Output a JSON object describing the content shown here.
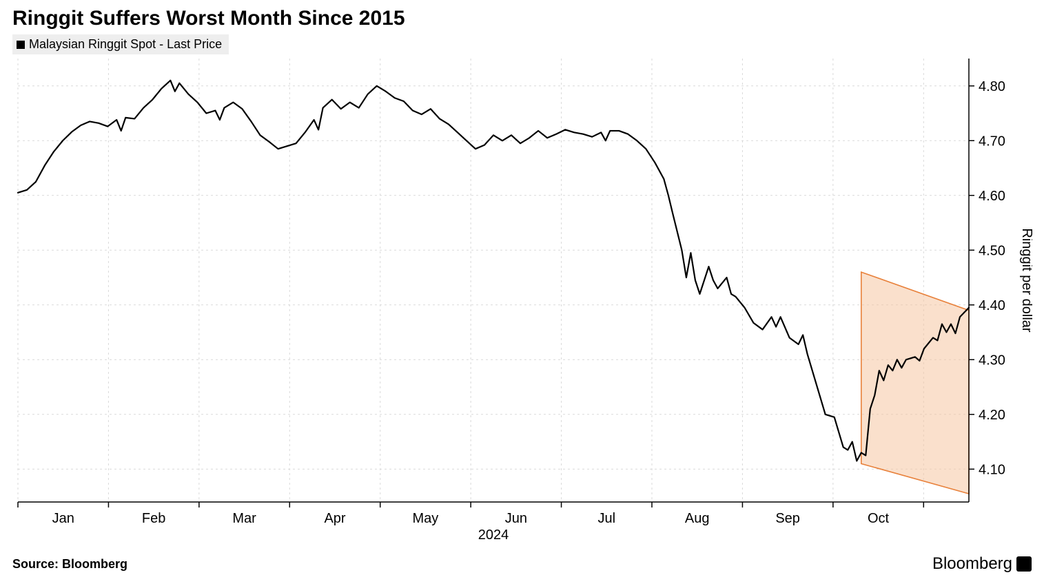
{
  "title": "Ringgit Suffers Worst Month Since 2015",
  "legend": {
    "label": "Malaysian Ringgit Spot - Last Price",
    "color": "#000000"
  },
  "source_label": "Source: Bloomberg",
  "brand": "Bloomberg",
  "chart": {
    "type": "line",
    "background_color": "#ffffff",
    "grid_color": "#d9d9d9",
    "grid_dash": "3,4",
    "line_color": "#000000",
    "line_width": 2.2,
    "axis_tick_color": "#000000",
    "tick_font_size": 20,
    "tick_color": "#000000",
    "x_axis": {
      "label": "2024",
      "ticks": [
        "Jan",
        "Feb",
        "Mar",
        "Apr",
        "May",
        "Jun",
        "Jul",
        "Aug",
        "Sep",
        "Oct"
      ],
      "x_min": 0,
      "x_max": 212
    },
    "y_axis": {
      "label": "Ringgit per dollar",
      "label_rotation": 90,
      "ylim": [
        4.04,
        4.85
      ],
      "ticks": [
        4.1,
        4.2,
        4.3,
        4.4,
        4.5,
        4.6,
        4.7,
        4.8
      ]
    },
    "highlight_region": {
      "fill": "#f5c7a3",
      "fill_opacity": 0.55,
      "stroke": "#e8813b",
      "stroke_width": 1.6,
      "points_xy": [
        [
          188,
          4.46
        ],
        [
          212,
          4.39
        ],
        [
          212,
          4.055
        ],
        [
          188,
          4.11
        ]
      ]
    },
    "series": [
      {
        "name": "Malaysian Ringgit Spot",
        "color": "#000000",
        "data": [
          [
            0,
            4.605
          ],
          [
            2,
            4.61
          ],
          [
            4,
            4.625
          ],
          [
            6,
            4.655
          ],
          [
            8,
            4.68
          ],
          [
            10,
            4.7
          ],
          [
            12,
            4.716
          ],
          [
            14,
            4.728
          ],
          [
            16,
            4.735
          ],
          [
            18,
            4.732
          ],
          [
            20,
            4.726
          ],
          [
            22,
            4.738
          ],
          [
            23,
            4.718
          ],
          [
            24,
            4.742
          ],
          [
            26,
            4.74
          ],
          [
            28,
            4.76
          ],
          [
            30,
            4.775
          ],
          [
            32,
            4.795
          ],
          [
            34,
            4.81
          ],
          [
            35,
            4.79
          ],
          [
            36,
            4.805
          ],
          [
            38,
            4.785
          ],
          [
            40,
            4.77
          ],
          [
            42,
            4.75
          ],
          [
            44,
            4.755
          ],
          [
            45,
            4.738
          ],
          [
            46,
            4.76
          ],
          [
            48,
            4.77
          ],
          [
            50,
            4.758
          ],
          [
            52,
            4.735
          ],
          [
            54,
            4.71
          ],
          [
            56,
            4.698
          ],
          [
            58,
            4.685
          ],
          [
            60,
            4.69
          ],
          [
            62,
            4.695
          ],
          [
            64,
            4.715
          ],
          [
            66,
            4.738
          ],
          [
            67,
            4.72
          ],
          [
            68,
            4.76
          ],
          [
            70,
            4.775
          ],
          [
            72,
            4.758
          ],
          [
            74,
            4.77
          ],
          [
            76,
            4.76
          ],
          [
            78,
            4.785
          ],
          [
            80,
            4.8
          ],
          [
            82,
            4.79
          ],
          [
            84,
            4.778
          ],
          [
            86,
            4.772
          ],
          [
            88,
            4.755
          ],
          [
            90,
            4.748
          ],
          [
            92,
            4.758
          ],
          [
            94,
            4.74
          ],
          [
            96,
            4.73
          ],
          [
            98,
            4.715
          ],
          [
            100,
            4.7
          ],
          [
            102,
            4.685
          ],
          [
            104,
            4.692
          ],
          [
            106,
            4.71
          ],
          [
            108,
            4.7
          ],
          [
            110,
            4.71
          ],
          [
            112,
            4.695
          ],
          [
            114,
            4.705
          ],
          [
            116,
            4.718
          ],
          [
            118,
            4.705
          ],
          [
            120,
            4.712
          ],
          [
            122,
            4.72
          ],
          [
            124,
            4.715
          ],
          [
            126,
            4.712
          ],
          [
            128,
            4.707
          ],
          [
            130,
            4.715
          ],
          [
            131,
            4.7
          ],
          [
            132,
            4.718
          ],
          [
            134,
            4.718
          ],
          [
            136,
            4.712
          ],
          [
            138,
            4.7
          ],
          [
            140,
            4.685
          ],
          [
            142,
            4.66
          ],
          [
            144,
            4.63
          ],
          [
            145,
            4.6
          ],
          [
            146,
            4.566
          ],
          [
            148,
            4.5
          ],
          [
            149,
            4.45
          ],
          [
            150,
            4.495
          ],
          [
            151,
            4.445
          ],
          [
            152,
            4.42
          ],
          [
            154,
            4.47
          ],
          [
            155,
            4.445
          ],
          [
            156,
            4.43
          ],
          [
            158,
            4.45
          ],
          [
            159,
            4.42
          ],
          [
            160,
            4.415
          ],
          [
            162,
            4.395
          ],
          [
            164,
            4.367
          ],
          [
            166,
            4.355
          ],
          [
            168,
            4.378
          ],
          [
            169,
            4.36
          ],
          [
            170,
            4.378
          ],
          [
            172,
            4.34
          ],
          [
            174,
            4.328
          ],
          [
            175,
            4.345
          ],
          [
            176,
            4.31
          ],
          [
            178,
            4.255
          ],
          [
            180,
            4.2
          ],
          [
            182,
            4.195
          ],
          [
            184,
            4.14
          ],
          [
            185,
            4.135
          ],
          [
            186,
            4.15
          ],
          [
            187,
            4.115
          ],
          [
            188,
            4.13
          ],
          [
            189,
            4.125
          ],
          [
            190,
            4.21
          ],
          [
            191,
            4.235
          ],
          [
            192,
            4.28
          ],
          [
            193,
            4.262
          ],
          [
            194,
            4.29
          ],
          [
            195,
            4.28
          ],
          [
            196,
            4.3
          ],
          [
            197,
            4.285
          ],
          [
            198,
            4.3
          ],
          [
            200,
            4.305
          ],
          [
            201,
            4.298
          ],
          [
            202,
            4.32
          ],
          [
            204,
            4.34
          ],
          [
            205,
            4.335
          ],
          [
            206,
            4.365
          ],
          [
            207,
            4.35
          ],
          [
            208,
            4.365
          ],
          [
            209,
            4.348
          ],
          [
            210,
            4.378
          ],
          [
            212,
            4.395
          ]
        ]
      }
    ]
  }
}
